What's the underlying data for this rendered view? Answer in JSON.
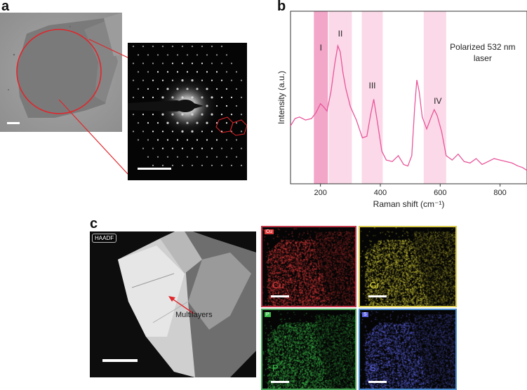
{
  "panels": {
    "a_letter": "a",
    "b_letter": "b",
    "c_letter": "c"
  },
  "panel_c": {
    "haadf_tag": "HAADF",
    "annotation": "Multilayers",
    "maps": [
      {
        "element": "Cu",
        "tag": "Cu",
        "color": "#e23b3b",
        "border": "#c0394a"
      },
      {
        "element": "Cr",
        "tag": "Cr",
        "color": "#d8d23a",
        "border": "#d9c94a"
      },
      {
        "element": "P",
        "tag": "P",
        "color": "#3cbf4a",
        "border": "#4aa85a"
      },
      {
        "element": "S",
        "tag": "S",
        "color": "#5a63e0",
        "border": "#4a8fd0"
      }
    ]
  },
  "colors": {
    "raman_line": "#e8559a",
    "band_dark": "#f2a6c8",
    "band_light": "#fbd9e8",
    "annotation_red": "#e0262b"
  },
  "chart_data": {
    "type": "line",
    "title": "",
    "xlabel": "Raman shift (cm⁻¹)",
    "ylabel": "Intensity (a.u.)",
    "xlim": [
      100,
      890
    ],
    "ylim": [
      0,
      1
    ],
    "xticks": [
      200,
      400,
      600,
      800
    ],
    "xtick_labels": [
      "200",
      "400",
      "600",
      "800"
    ],
    "annotation": "Polarized 532 nm laser",
    "bands": [
      {
        "label": "I",
        "range": [
          178,
          225
        ],
        "shade": "dark"
      },
      {
        "label": "II",
        "range": [
          228,
          305
        ],
        "shade": "light"
      },
      {
        "label": "III",
        "range": [
          338,
          408
        ],
        "shade": "light"
      },
      {
        "label": "IV",
        "range": [
          545,
          620
        ],
        "shade": "light"
      }
    ],
    "series": [
      {
        "x": [
          100,
          115,
          130,
          150,
          170,
          185,
          200,
          210,
          222,
          235,
          248,
          258,
          266,
          275,
          285,
          300,
          320,
          340,
          355,
          368,
          378,
          390,
          405,
          420,
          440,
          460,
          478,
          492,
          505,
          515,
          522,
          530,
          540,
          555,
          570,
          580,
          590,
          605,
          620,
          640,
          660,
          680,
          700,
          720,
          740,
          760,
          780,
          800,
          820,
          840,
          860,
          875,
          890
        ],
        "y": [
          0.32,
          0.37,
          0.38,
          0.36,
          0.37,
          0.41,
          0.47,
          0.45,
          0.42,
          0.55,
          0.74,
          0.86,
          0.82,
          0.68,
          0.57,
          0.45,
          0.36,
          0.24,
          0.25,
          0.4,
          0.5,
          0.35,
          0.15,
          0.09,
          0.08,
          0.12,
          0.06,
          0.05,
          0.12,
          0.45,
          0.63,
          0.55,
          0.38,
          0.3,
          0.38,
          0.43,
          0.39,
          0.28,
          0.12,
          0.09,
          0.13,
          0.08,
          0.07,
          0.1,
          0.06,
          0.08,
          0.1,
          0.09,
          0.08,
          0.07,
          0.05,
          0.04,
          0.02
        ]
      }
    ]
  }
}
